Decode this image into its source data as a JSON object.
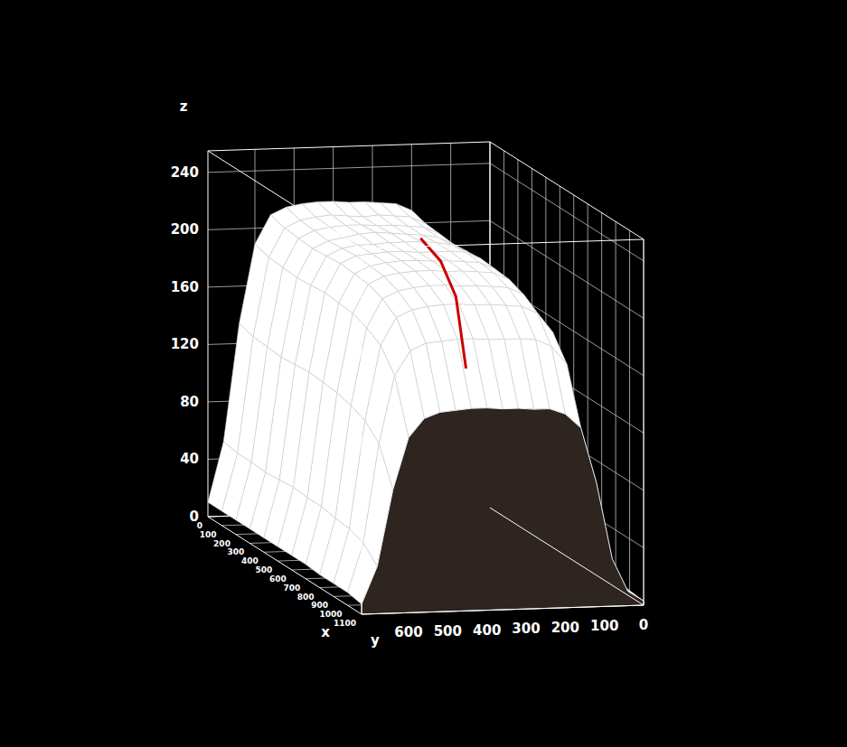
{
  "chart_data": {
    "type": "surface",
    "xlabel": "x",
    "ylabel": "y",
    "zlabel": "z",
    "color": "#ffffff",
    "grid": true,
    "xlim": [
      0,
      1100
    ],
    "ylim": [
      0,
      720
    ],
    "zlim": [
      0,
      255
    ],
    "xticks": [
      0,
      100,
      200,
      300,
      400,
      500,
      600,
      700,
      800,
      900,
      1000,
      1100
    ],
    "yticks": [
      0,
      100,
      200,
      300,
      400,
      500,
      600
    ],
    "zticks": [
      0,
      40,
      80,
      120,
      160,
      200,
      240
    ],
    "x": [
      0,
      100,
      200,
      300,
      400,
      500,
      600,
      700,
      800,
      900,
      1000,
      1100
    ],
    "y": [
      0,
      40,
      80,
      120,
      160,
      200,
      240,
      280,
      320,
      360,
      400,
      440,
      480,
      520,
      560,
      600,
      640,
      680,
      720
    ],
    "z": [
      [
        5,
        16,
        54,
        134,
        194,
        209,
        214,
        215,
        216,
        216,
        217,
        217,
        216,
        214,
        209,
        189,
        134,
        52,
        10
      ],
      [
        5,
        15,
        51,
        131,
        191,
        206,
        211,
        212,
        213,
        212,
        213,
        214,
        213,
        211,
        206,
        186,
        131,
        50,
        10
      ],
      [
        5,
        15,
        50,
        130,
        190,
        205,
        210,
        211,
        212,
        212,
        213,
        213,
        212,
        210,
        205,
        185,
        130,
        50,
        10
      ],
      [
        5,
        14,
        49,
        129,
        189,
        204,
        209,
        211,
        212,
        213,
        214,
        213,
        211,
        209,
        204,
        184,
        129,
        49,
        10
      ],
      [
        5,
        15,
        50,
        130,
        190,
        205,
        210,
        212,
        213,
        213,
        213,
        212,
        212,
        210,
        205,
        185,
        130,
        50,
        10
      ],
      [
        5,
        15,
        51,
        131,
        191,
        206,
        211,
        212,
        212,
        212,
        213,
        213,
        212,
        211,
        206,
        186,
        131,
        51,
        10
      ],
      [
        5,
        15,
        50,
        130,
        190,
        205,
        210,
        211,
        212,
        212,
        213,
        213,
        212,
        210,
        205,
        185,
        130,
        50,
        10
      ],
      [
        5,
        15,
        50,
        129,
        189,
        204,
        209,
        210,
        211,
        211,
        212,
        212,
        211,
        209,
        204,
        184,
        129,
        50,
        10
      ],
      [
        5,
        14,
        48,
        126,
        185,
        200,
        205,
        206,
        207,
        207,
        208,
        208,
        207,
        205,
        200,
        180,
        126,
        48,
        9
      ],
      [
        5,
        14,
        47,
        122,
        179,
        193,
        198,
        199,
        200,
        200,
        201,
        201,
        200,
        198,
        193,
        174,
        122,
        47,
        9
      ],
      [
        4,
        13,
        43,
        112,
        163,
        176,
        181,
        182,
        182,
        182,
        183,
        183,
        182,
        181,
        176,
        159,
        112,
        43,
        9
      ],
      [
        3,
        10,
        33,
        86,
        125,
        135,
        139,
        139,
        140,
        140,
        141,
        141,
        140,
        139,
        135,
        122,
        86,
        33,
        7
      ]
    ],
    "path": {
      "color": "#cc0000",
      "x": [
        350,
        600,
        850,
        1040
      ],
      "y": [
        302,
        340,
        390,
        432
      ],
      "z": [
        212,
        212,
        203,
        165
      ]
    }
  }
}
